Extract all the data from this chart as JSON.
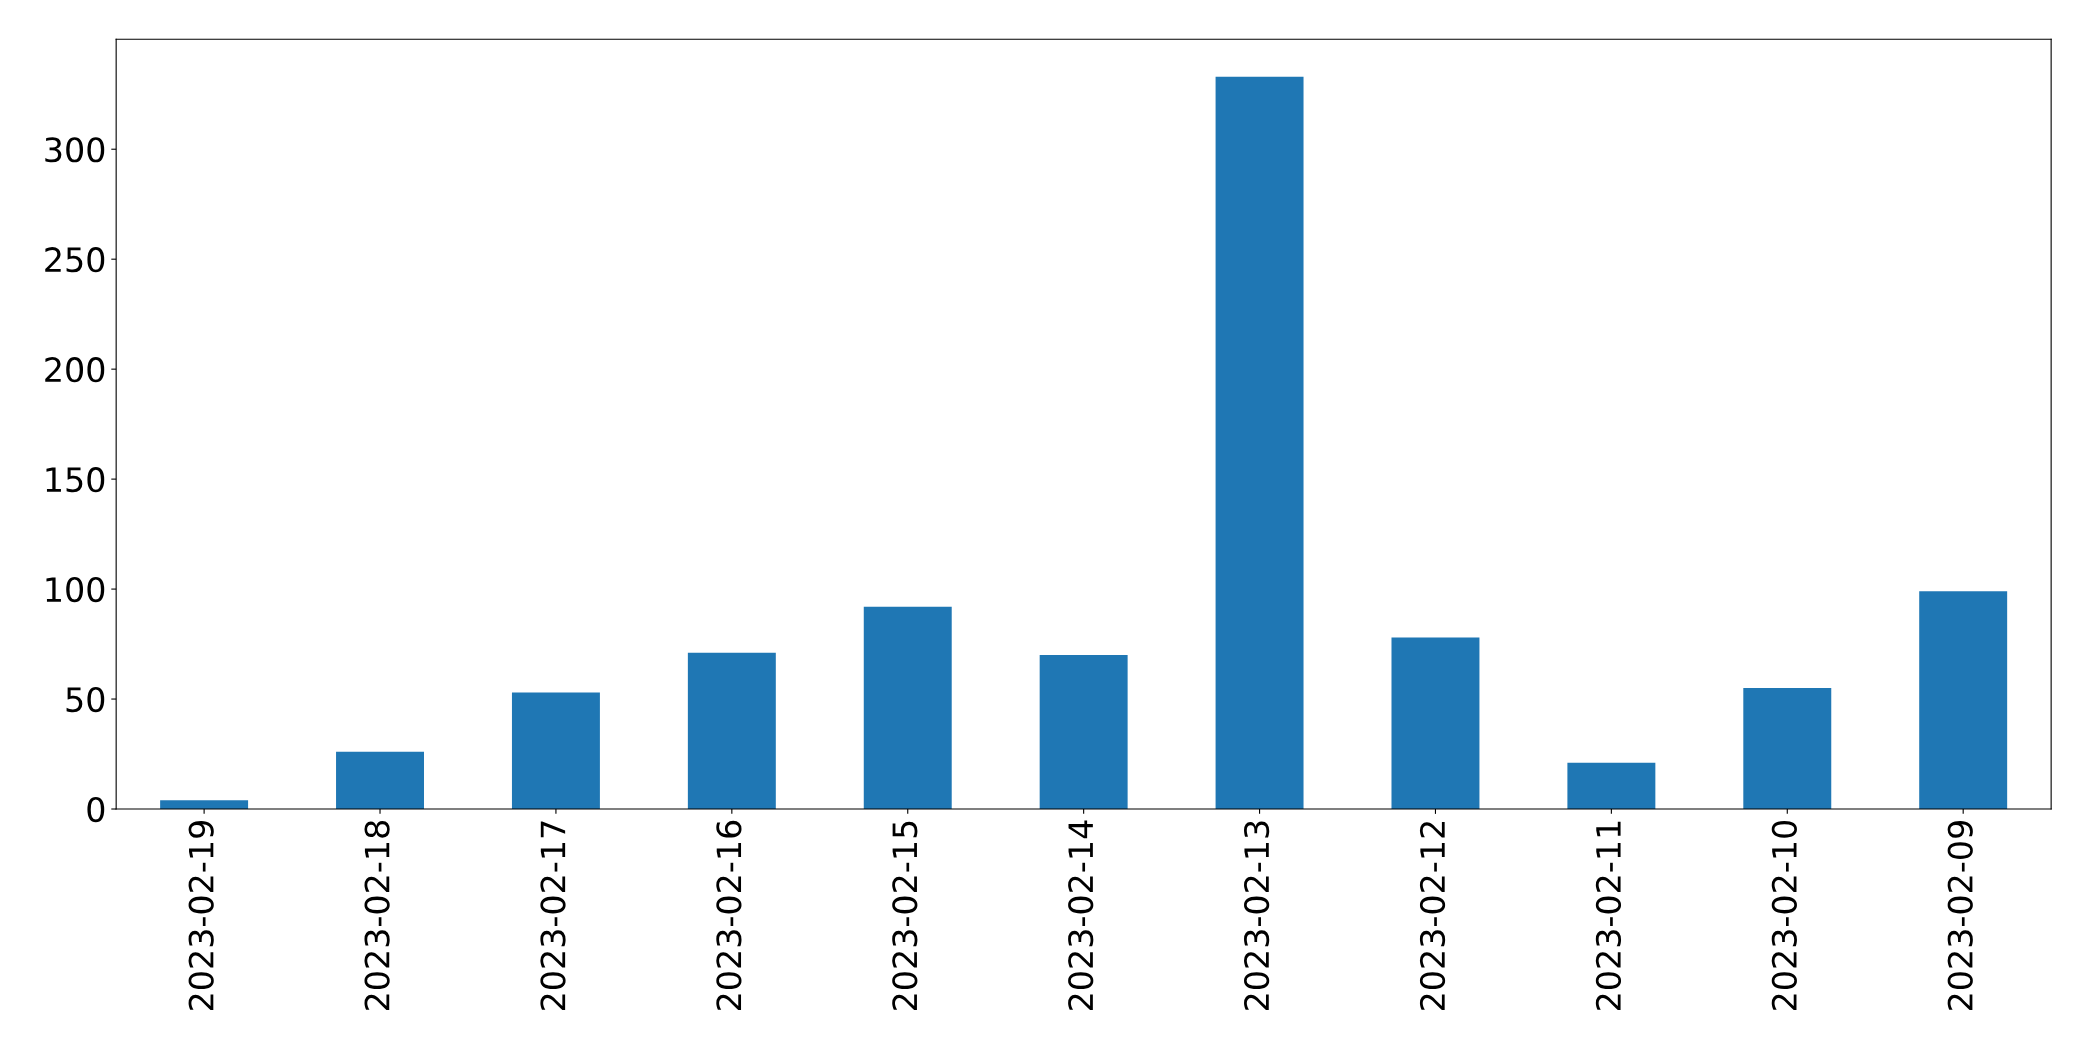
{
  "chart_data": {
    "type": "bar",
    "categories": [
      "2023-02-19",
      "2023-02-18",
      "2023-02-17",
      "2023-02-16",
      "2023-02-15",
      "2023-02-14",
      "2023-02-13",
      "2023-02-12",
      "2023-02-11",
      "2023-02-10",
      "2023-02-09"
    ],
    "values": [
      4,
      26,
      53,
      71,
      92,
      70,
      333,
      78,
      21,
      55,
      99
    ],
    "color": "#1f77b4",
    "ylim": [
      0,
      350
    ],
    "yticks": [
      0,
      50,
      100,
      150,
      200,
      250,
      300
    ],
    "grid": false,
    "legend": false
  }
}
